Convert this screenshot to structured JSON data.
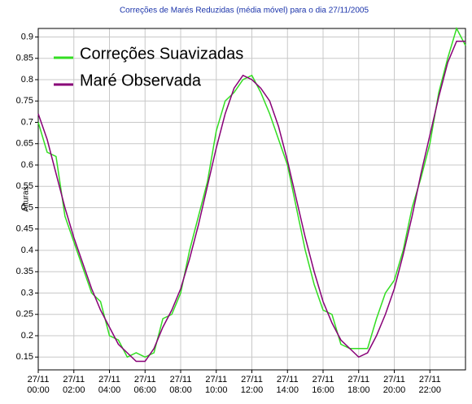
{
  "chart_data": {
    "type": "line",
    "title": "Correções de Marés Reduzidas (média móvel) para o dia  27/11/2005",
    "y_label": "Alturas",
    "x": [
      0,
      0.5,
      1,
      1.5,
      2,
      2.5,
      3,
      3.5,
      4,
      4.5,
      5,
      5.5,
      6,
      6.5,
      7,
      7.5,
      8,
      8.5,
      9,
      9.5,
      10,
      10.5,
      11,
      11.5,
      12,
      12.5,
      13,
      13.5,
      14,
      14.5,
      15,
      15.5,
      16,
      16.5,
      17,
      17.5,
      18,
      18.5,
      19,
      19.5,
      20,
      20.5,
      21,
      21.5,
      22,
      22.5,
      23,
      23.5,
      24
    ],
    "series": [
      {
        "name": "Correções Suavizadas",
        "color": "#33dd22",
        "values": [
          0.7,
          0.63,
          0.62,
          0.48,
          0.42,
          0.36,
          0.3,
          0.28,
          0.2,
          0.19,
          0.15,
          0.16,
          0.15,
          0.16,
          0.24,
          0.25,
          0.3,
          0.4,
          0.48,
          0.56,
          0.68,
          0.75,
          0.77,
          0.8,
          0.81,
          0.77,
          0.72,
          0.66,
          0.6,
          0.5,
          0.4,
          0.32,
          0.26,
          0.25,
          0.18,
          0.17,
          0.17,
          0.17,
          0.24,
          0.3,
          0.33,
          0.4,
          0.5,
          0.57,
          0.65,
          0.77,
          0.85,
          0.92,
          0.88
        ]
      },
      {
        "name": "Maré Observada",
        "color": "#880077",
        "values": [
          0.72,
          0.66,
          0.58,
          0.5,
          0.43,
          0.37,
          0.31,
          0.26,
          0.22,
          0.18,
          0.16,
          0.14,
          0.14,
          0.17,
          0.22,
          0.26,
          0.31,
          0.38,
          0.46,
          0.55,
          0.64,
          0.72,
          0.78,
          0.81,
          0.8,
          0.78,
          0.75,
          0.69,
          0.61,
          0.52,
          0.43,
          0.35,
          0.28,
          0.23,
          0.19,
          0.17,
          0.15,
          0.16,
          0.2,
          0.25,
          0.31,
          0.39,
          0.48,
          0.58,
          0.67,
          0.76,
          0.84,
          0.89,
          0.89
        ]
      }
    ],
    "xlim": [
      0,
      24
    ],
    "xticks": [
      {
        "value": 0,
        "label": "27/11 00:00"
      },
      {
        "value": 2,
        "label": "27/11 02:00"
      },
      {
        "value": 4,
        "label": "27/11 04:00"
      },
      {
        "value": 6,
        "label": "27/11 06:00"
      },
      {
        "value": 8,
        "label": "27/11 08:00"
      },
      {
        "value": 10,
        "label": "27/11 10:00"
      },
      {
        "value": 12,
        "label": "27/11 12:00"
      },
      {
        "value": 14,
        "label": "27/11 14:00"
      },
      {
        "value": 16,
        "label": "27/11 16:00"
      },
      {
        "value": 18,
        "label": "27/11 18:00"
      },
      {
        "value": 20,
        "label": "27/11 20:00"
      },
      {
        "value": 22,
        "label": "27/11 22:00"
      }
    ],
    "ylim": [
      0.12,
      0.92
    ],
    "yticks": [
      0.15,
      0.2,
      0.25,
      0.3,
      0.35,
      0.4,
      0.45,
      0.5,
      0.55,
      0.6,
      0.65,
      0.7,
      0.75,
      0.8,
      0.85,
      0.9
    ],
    "grid": true,
    "legend": "upper-left"
  }
}
